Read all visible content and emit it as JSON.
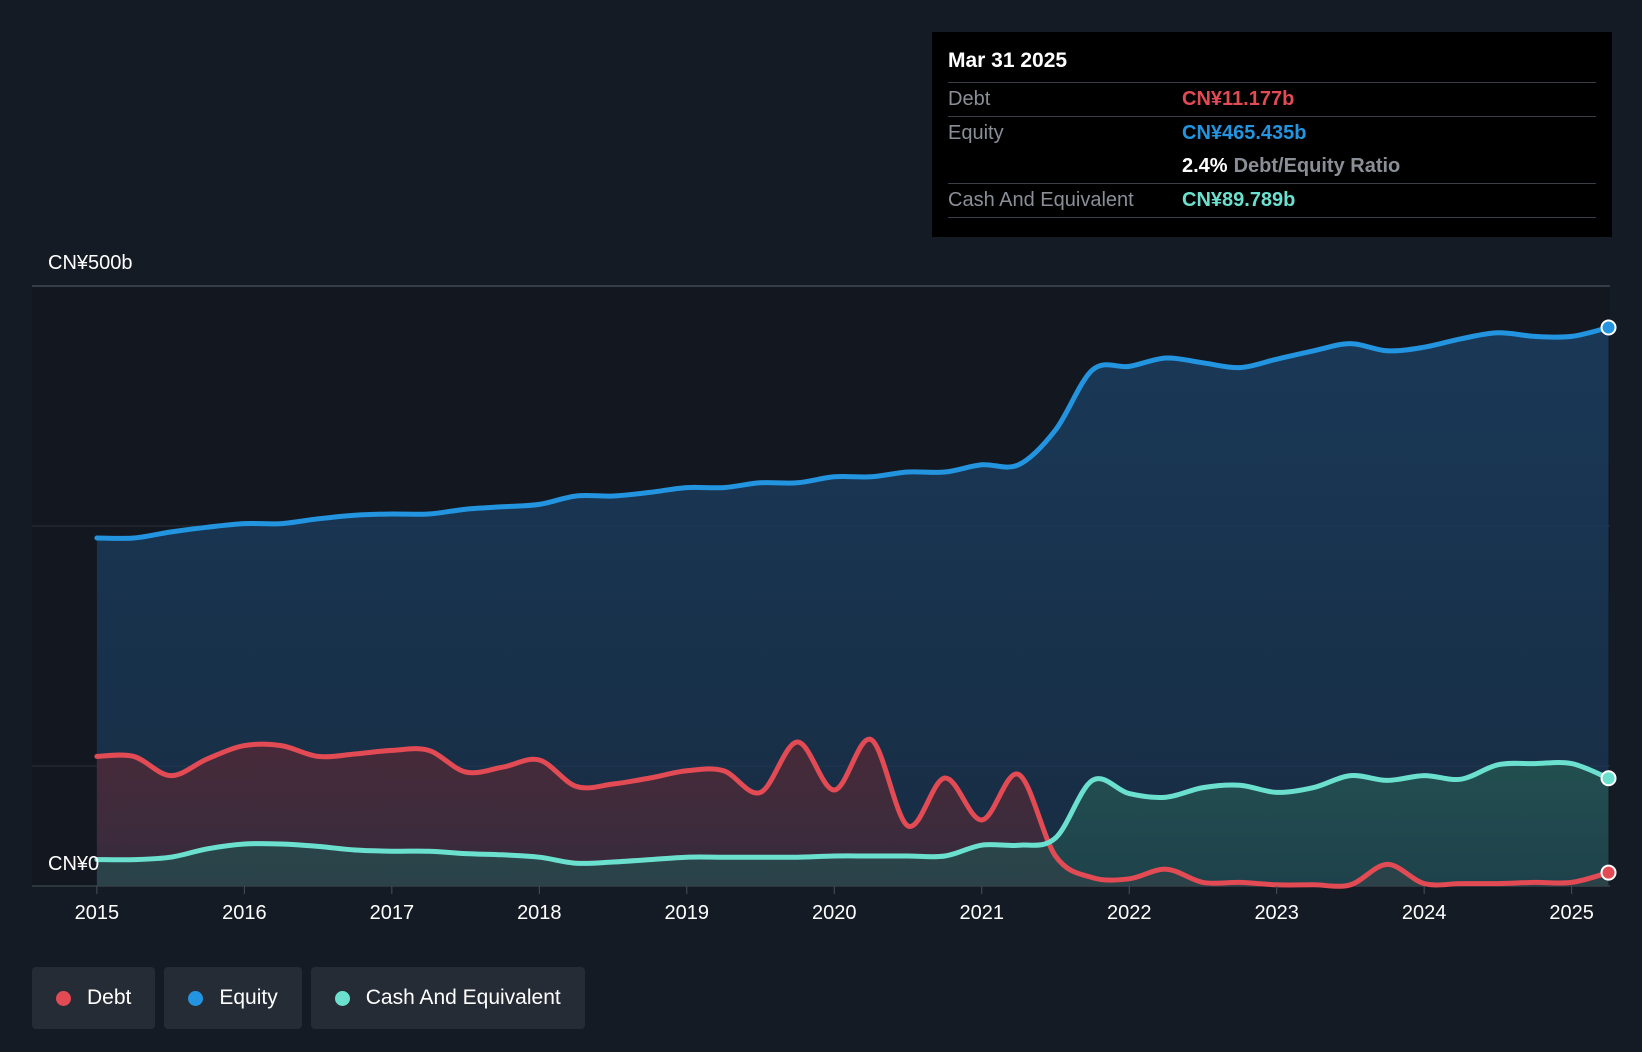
{
  "chart_data": {
    "type": "area",
    "currency_unit": "CN¥",
    "y_top_label": "CN¥500b",
    "y_bottom_label": "CN¥0",
    "ylim": [
      0,
      500
    ],
    "x_tick_labels": [
      "2015",
      "2016",
      "2017",
      "2018",
      "2019",
      "2020",
      "2021",
      "2022",
      "2023",
      "2024",
      "2025"
    ],
    "x_ticks": [
      2015,
      2016,
      2017,
      2018,
      2019,
      2020,
      2021,
      2022,
      2023,
      2024,
      2025
    ],
    "xlim": [
      2014.56,
      2025.26
    ],
    "series": [
      {
        "name": "Equity",
        "color": "#2394df",
        "fill": "#1a3a5a",
        "points": [
          [
            2015,
            290
          ],
          [
            2015.25,
            290
          ],
          [
            2015.5,
            295
          ],
          [
            2015.75,
            299
          ],
          [
            2016,
            302
          ],
          [
            2016.25,
            302
          ],
          [
            2016.5,
            306
          ],
          [
            2016.75,
            309
          ],
          [
            2017,
            310
          ],
          [
            2017.25,
            310
          ],
          [
            2017.5,
            314
          ],
          [
            2017.75,
            316
          ],
          [
            2018,
            318
          ],
          [
            2018.25,
            325
          ],
          [
            2018.5,
            325
          ],
          [
            2018.75,
            328
          ],
          [
            2019,
            332
          ],
          [
            2019.25,
            332
          ],
          [
            2019.5,
            336
          ],
          [
            2019.75,
            336
          ],
          [
            2020,
            341
          ],
          [
            2020.25,
            341
          ],
          [
            2020.5,
            345
          ],
          [
            2020.75,
            345
          ],
          [
            2021,
            351
          ],
          [
            2021.25,
            351
          ],
          [
            2021.5,
            380
          ],
          [
            2021.75,
            430
          ],
          [
            2022,
            433
          ],
          [
            2022.25,
            440
          ],
          [
            2022.5,
            436
          ],
          [
            2022.75,
            432
          ],
          [
            2023,
            439
          ],
          [
            2023.25,
            446
          ],
          [
            2023.5,
            452
          ],
          [
            2023.75,
            446
          ],
          [
            2024,
            449
          ],
          [
            2024.25,
            456
          ],
          [
            2024.5,
            461
          ],
          [
            2024.75,
            458
          ],
          [
            2025,
            458
          ],
          [
            2025.25,
            465.435
          ]
        ]
      },
      {
        "name": "Debt",
        "color": "#e24a54",
        "fill": "#4a2a38",
        "points": [
          [
            2015,
            108
          ],
          [
            2015.25,
            108
          ],
          [
            2015.5,
            92
          ],
          [
            2015.75,
            106
          ],
          [
            2016,
            117
          ],
          [
            2016.25,
            117
          ],
          [
            2016.5,
            108
          ],
          [
            2016.75,
            110
          ],
          [
            2017,
            113
          ],
          [
            2017.25,
            113
          ],
          [
            2017.5,
            95
          ],
          [
            2017.75,
            99
          ],
          [
            2018,
            105
          ],
          [
            2018.25,
            83
          ],
          [
            2018.5,
            85
          ],
          [
            2018.75,
            90
          ],
          [
            2019,
            96
          ],
          [
            2019.25,
            96
          ],
          [
            2019.5,
            78
          ],
          [
            2019.75,
            120
          ],
          [
            2020,
            80
          ],
          [
            2020.25,
            122
          ],
          [
            2020.5,
            50
          ],
          [
            2020.75,
            90
          ],
          [
            2021,
            55
          ],
          [
            2021.25,
            93
          ],
          [
            2021.5,
            25
          ],
          [
            2021.75,
            7
          ],
          [
            2022,
            6
          ],
          [
            2022.25,
            14
          ],
          [
            2022.5,
            3
          ],
          [
            2022.75,
            3
          ],
          [
            2023,
            1
          ],
          [
            2023.25,
            1
          ],
          [
            2023.5,
            1
          ],
          [
            2023.75,
            18
          ],
          [
            2024,
            2
          ],
          [
            2024.25,
            2
          ],
          [
            2024.5,
            2
          ],
          [
            2024.75,
            3
          ],
          [
            2025,
            3
          ],
          [
            2025.25,
            11.177
          ]
        ]
      },
      {
        "name": "Cash And Equivalent",
        "color": "#6ce0cf",
        "fill": "#235050",
        "points": [
          [
            2015,
            22
          ],
          [
            2015.25,
            22
          ],
          [
            2015.5,
            24
          ],
          [
            2015.75,
            31
          ],
          [
            2016,
            35
          ],
          [
            2016.25,
            35
          ],
          [
            2016.5,
            33
          ],
          [
            2016.75,
            30
          ],
          [
            2017,
            29
          ],
          [
            2017.25,
            29
          ],
          [
            2017.5,
            27
          ],
          [
            2017.75,
            26
          ],
          [
            2018,
            24
          ],
          [
            2018.25,
            19
          ],
          [
            2018.5,
            20
          ],
          [
            2018.75,
            22
          ],
          [
            2019,
            24
          ],
          [
            2019.25,
            24
          ],
          [
            2019.5,
            24
          ],
          [
            2019.75,
            24
          ],
          [
            2020,
            25
          ],
          [
            2020.25,
            25
          ],
          [
            2020.5,
            25
          ],
          [
            2020.75,
            25
          ],
          [
            2021,
            34
          ],
          [
            2021.25,
            34
          ],
          [
            2021.5,
            40
          ],
          [
            2021.75,
            88
          ],
          [
            2022,
            77
          ],
          [
            2022.25,
            74
          ],
          [
            2022.5,
            82
          ],
          [
            2022.75,
            84
          ],
          [
            2023,
            78
          ],
          [
            2023.25,
            82
          ],
          [
            2023.5,
            92
          ],
          [
            2023.75,
            88
          ],
          [
            2024,
            92
          ],
          [
            2024.25,
            89
          ],
          [
            2024.5,
            101
          ],
          [
            2024.75,
            102
          ],
          [
            2025,
            102
          ],
          [
            2025.25,
            89.789
          ]
        ]
      }
    ]
  },
  "tooltip": {
    "date": "Mar 31 2025",
    "debt_label": "Debt",
    "debt_value": "CN¥11.177b",
    "equity_label": "Equity",
    "equity_value": "CN¥465.435b",
    "ratio_value": "2.4%",
    "ratio_label": "Debt/Equity Ratio",
    "cash_label": "Cash And Equivalent",
    "cash_value": "CN¥89.789b"
  },
  "legend": {
    "debt": "Debt",
    "equity": "Equity",
    "cash": "Cash And Equivalent"
  },
  "colors": {
    "debt": "#e24a54",
    "equity": "#2394df",
    "cash": "#6ce0cf"
  }
}
